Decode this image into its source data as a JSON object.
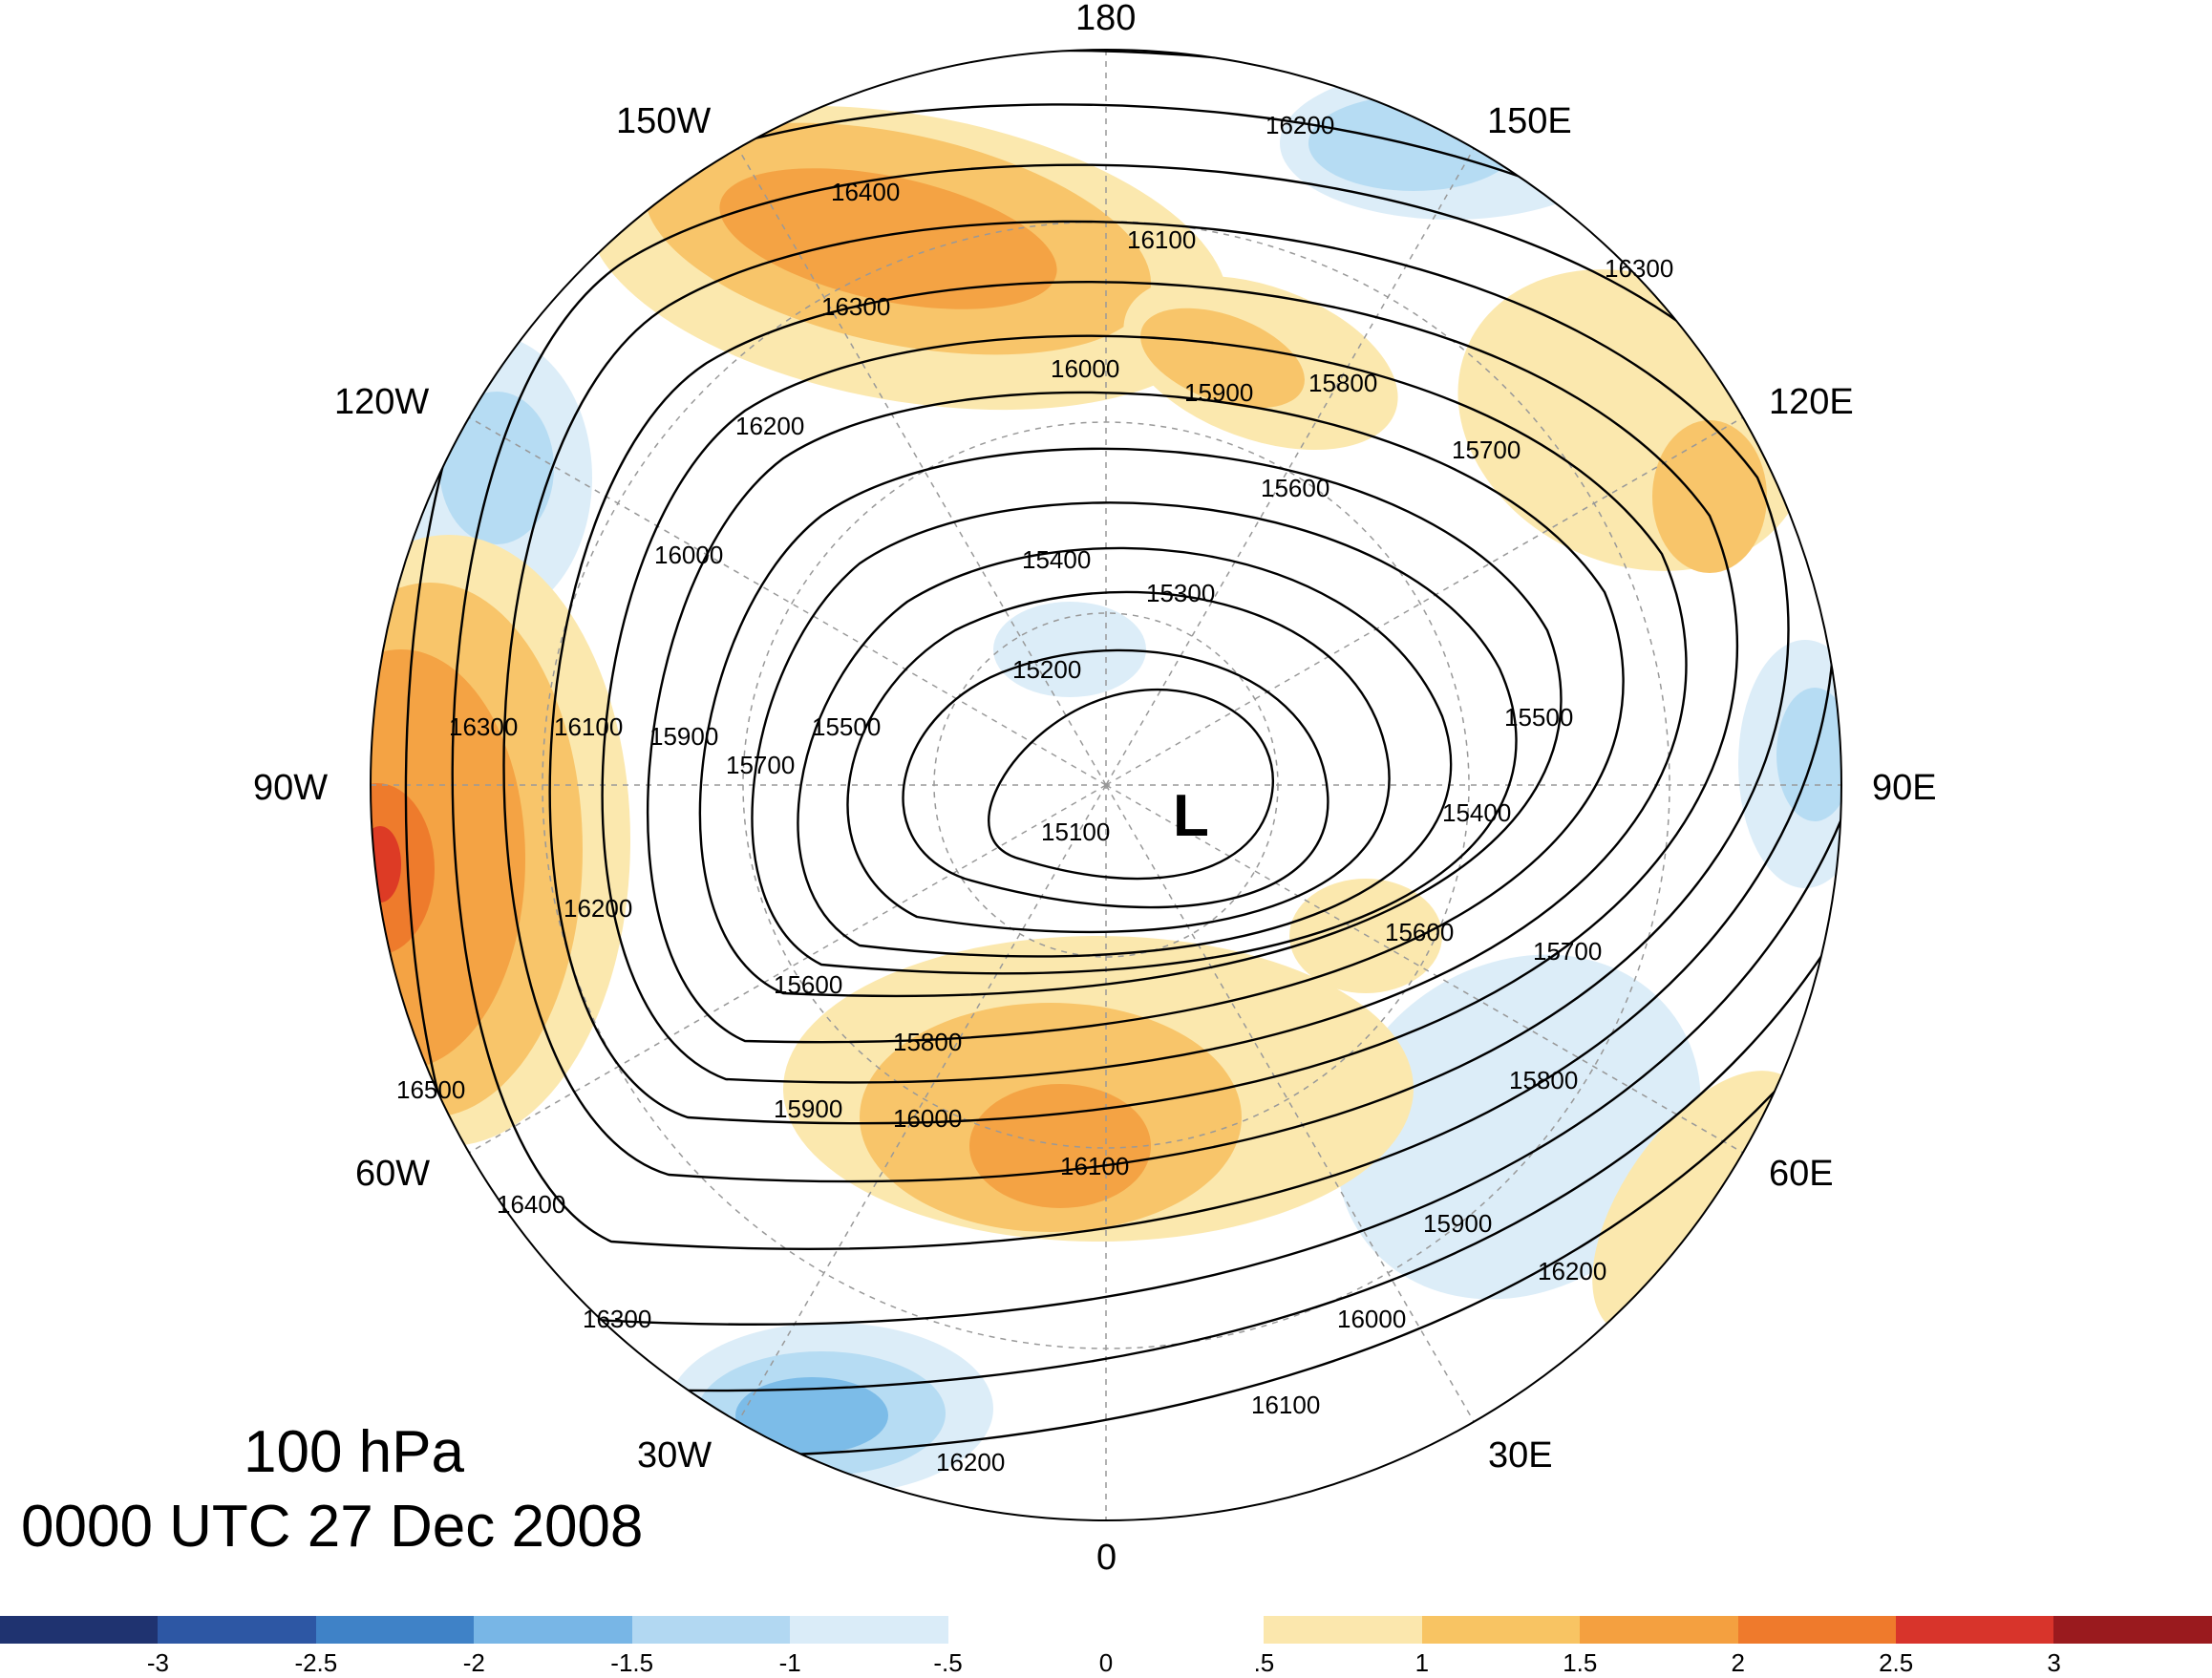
{
  "title": {
    "level": "100 hPa",
    "time": "0000 UTC 27 Dec 2008"
  },
  "longitude_labels": {
    "n180": "180",
    "n150w": "150W",
    "n150e": "150E",
    "n120w": "120W",
    "n120e": "120E",
    "n90w": "90W",
    "n90e": "90E",
    "n60w": "60W",
    "n60e": "60E",
    "n30w": "30W",
    "n30e": "30E",
    "n0": "0"
  },
  "low_marker": "L",
  "contour_labels": [
    "16400",
    "16300",
    "16200",
    "16100",
    "16000",
    "15900",
    "15800",
    "15700",
    "15600",
    "15500",
    "15400",
    "15300",
    "15200",
    "15100",
    "16500"
  ],
  "anomaly_colors": {
    "neg3": "#1f3370",
    "neg2_5": "#2f5ba8",
    "neg2": "#4b8fd0",
    "neg1_5": "#7cbce8",
    "neg1": "#b6dcf3",
    "neg0_5": "#dcedf8",
    "zero": "#ffffff",
    "pos0_5": "#fbe8ae",
    "pos1": "#f8c56a",
    "pos1_5": "#f4a344",
    "pos2": "#ee7b2c",
    "pos2_5": "#dd3b25",
    "pos3": "#9b1b1d"
  },
  "colorbar": {
    "colors": [
      "#1f3370",
      "#2d57a4",
      "#3f82c7",
      "#78b6e6",
      "#b2d8f2",
      "#daecf8",
      "#ffffff",
      "#ffffff",
      "#fbe7ad",
      "#f8c463",
      "#f4a040",
      "#ef7a2c",
      "#d8342b",
      "#9a1a1e"
    ],
    "labels": [
      "-3",
      "-2.5",
      "-2",
      "-1.5",
      "-1",
      "-.5",
      "0",
      ".5",
      "1",
      "1.5",
      "2",
      "2.5",
      "3"
    ]
  }
}
